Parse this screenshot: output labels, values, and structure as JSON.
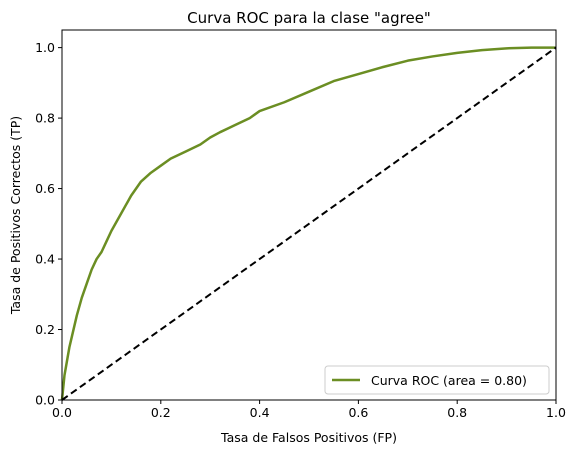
{
  "chart_data": {
    "type": "line",
    "title": "Curva ROC para la clase \"agree\"",
    "xlabel": "Tasa de Falsos Positivos (FP)",
    "ylabel": "Tasa de Positivos Correctos (TP)",
    "xlim": [
      0.0,
      1.0
    ],
    "ylim": [
      0.0,
      1.05
    ],
    "grid": false,
    "legend_position": "lower-right",
    "x_ticks": [
      "0.0",
      "0.2",
      "0.4",
      "0.6",
      "0.8",
      "1.0"
    ],
    "y_ticks": [
      "0.0",
      "0.2",
      "0.4",
      "0.6",
      "0.8",
      "1.0"
    ],
    "series": [
      {
        "name": "Curva ROC (area = 0.80)",
        "color": "#6b8e23",
        "style": "solid",
        "x": [
          0.0,
          0.005,
          0.01,
          0.015,
          0.02,
          0.03,
          0.04,
          0.05,
          0.06,
          0.07,
          0.08,
          0.09,
          0.1,
          0.12,
          0.14,
          0.16,
          0.18,
          0.2,
          0.22,
          0.25,
          0.28,
          0.3,
          0.32,
          0.35,
          0.38,
          0.4,
          0.45,
          0.5,
          0.55,
          0.6,
          0.65,
          0.7,
          0.75,
          0.8,
          0.85,
          0.9,
          0.95,
          1.0
        ],
        "y": [
          0.0,
          0.07,
          0.11,
          0.15,
          0.18,
          0.24,
          0.29,
          0.33,
          0.37,
          0.4,
          0.42,
          0.45,
          0.48,
          0.53,
          0.58,
          0.62,
          0.645,
          0.665,
          0.685,
          0.705,
          0.725,
          0.745,
          0.76,
          0.78,
          0.8,
          0.82,
          0.845,
          0.875,
          0.905,
          0.925,
          0.945,
          0.963,
          0.975,
          0.985,
          0.993,
          0.998,
          1.0,
          1.0
        ]
      },
      {
        "name": "",
        "color": "#000000",
        "style": "dashed",
        "x": [
          0.0,
          1.0
        ],
        "y": [
          0.0,
          1.0
        ]
      }
    ]
  }
}
